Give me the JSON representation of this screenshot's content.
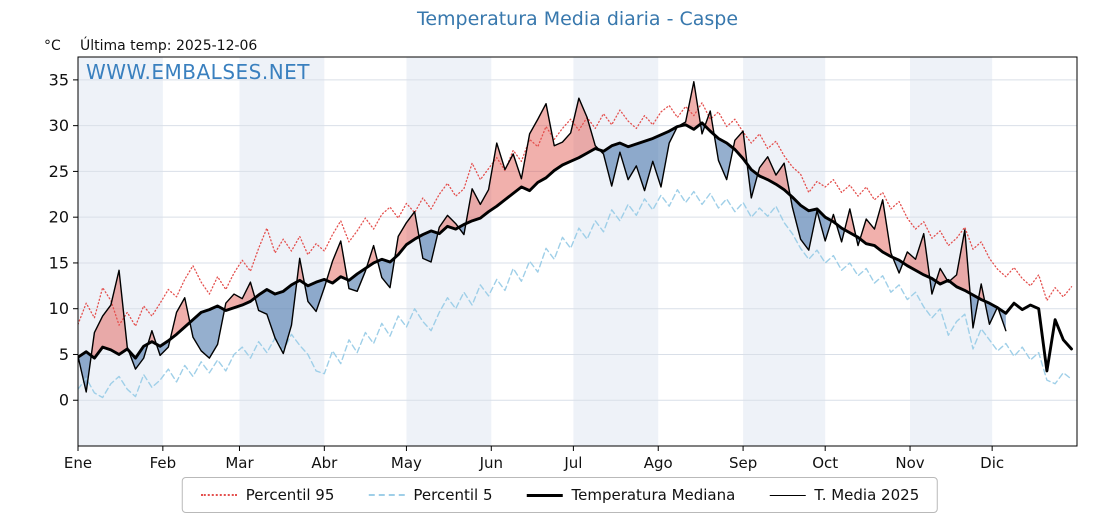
{
  "header": {
    "title": "Temperatura Media diaria - Caspe",
    "unit": "°C",
    "last_temp": "Última temp: 2025-12-06",
    "watermark": "WWW.EMBALSES.NET"
  },
  "colors": {
    "title_blue": "#3878ad",
    "watermark_blue": "#3a80bf",
    "p95_line": "#e4504e",
    "p5_line": "#9fcfe8",
    "median_line": "#000000",
    "t2025_line": "#000000",
    "fill_above": "rgba(225,80,72,0.45)",
    "fill_below": "rgba(62,110,165,0.55)",
    "month_band": "#eef2f8",
    "gridline": "#d9dfe8",
    "axis": "#000000"
  },
  "legend": [
    {
      "key": "p95",
      "label": "Percentil 95"
    },
    {
      "key": "p5",
      "label": "Percentil 5"
    },
    {
      "key": "median",
      "label": "Temperatura Mediana"
    },
    {
      "key": "t2025",
      "label": "T. Media 2025"
    }
  ],
  "chart_data": {
    "type": "line",
    "title": "Temperatura Media diaria - Caspe",
    "ylabel": "°C",
    "ylim": [
      -5,
      37.5
    ],
    "yticks": [
      0,
      5,
      10,
      15,
      20,
      25,
      30,
      35
    ],
    "grid": "horizontal",
    "legend_position": "bottom-center",
    "months": [
      "Ene",
      "Feb",
      "Mar",
      "Abr",
      "May",
      "Jun",
      "Jul",
      "Ago",
      "Sep",
      "Oct",
      "Nov",
      "Dic"
    ],
    "month_start_days": [
      0,
      31,
      59,
      90,
      120,
      151,
      181,
      212,
      243,
      273,
      304,
      334
    ],
    "days_total": 365,
    "banded_months": "odd (Ene, Mar, May, Jul, Sep, Nov shaded)",
    "x_step_days": 3,
    "last_data_day": 339,
    "series": [
      {
        "key": "p95",
        "name": "Percentil 95",
        "style": "dotted",
        "values": [
          8.3,
          10.6,
          9.0,
          12.3,
          10.9,
          8.2,
          9.6,
          8.1,
          10.3,
          9.2,
          10.6,
          12.1,
          11.3,
          13.2,
          14.7,
          12.9,
          11.6,
          13.5,
          12.1,
          13.9,
          15.3,
          14.1,
          16.6,
          18.8,
          16.1,
          17.6,
          16.3,
          17.9,
          15.9,
          17.1,
          16.3,
          18.1,
          19.6,
          17.3,
          18.5,
          19.9,
          18.7,
          20.3,
          21.1,
          19.9,
          21.5,
          20.5,
          22.1,
          20.9,
          22.5,
          23.7,
          22.3,
          23.1,
          25.9,
          24.1,
          25.3,
          26.5,
          25.1,
          27.3,
          26.1,
          28.5,
          27.7,
          29.9,
          28.5,
          29.7,
          30.7,
          29.5,
          30.9,
          29.7,
          31.3,
          30.1,
          31.7,
          30.5,
          29.7,
          31.1,
          30.1,
          31.5,
          32.2,
          30.9,
          32.1,
          31.1,
          32.5,
          30.7,
          31.5,
          29.9,
          30.7,
          29.3,
          28.1,
          29.1,
          27.5,
          28.3,
          26.7,
          25.5,
          24.7,
          22.7,
          23.9,
          23.3,
          24.1,
          22.7,
          23.5,
          22.3,
          23.3,
          21.9,
          22.7,
          20.9,
          21.7,
          19.9,
          18.7,
          19.5,
          17.7,
          18.5,
          16.9,
          17.7,
          18.9,
          16.5,
          17.3,
          15.5,
          14.3,
          13.5,
          14.5,
          13.3,
          12.5,
          13.7,
          10.9,
          12.3,
          11.3,
          12.4
        ]
      },
      {
        "key": "p5",
        "name": "Percentil 5",
        "style": "dashed",
        "values": [
          1.2,
          2.4,
          0.8,
          0.3,
          1.8,
          2.6,
          1.2,
          0.4,
          2.8,
          1.4,
          2.2,
          3.4,
          2.0,
          3.8,
          2.6,
          4.2,
          3.0,
          4.4,
          3.2,
          5.0,
          5.8,
          4.6,
          6.4,
          5.2,
          6.8,
          5.4,
          7.2,
          6.0,
          5.0,
          3.2,
          2.9,
          5.4,
          4.0,
          6.6,
          5.2,
          7.4,
          6.2,
          8.4,
          7.0,
          9.2,
          8.0,
          10.0,
          8.6,
          7.6,
          9.6,
          11.2,
          10.0,
          11.8,
          10.4,
          12.6,
          11.4,
          13.2,
          12.0,
          14.4,
          13.0,
          15.2,
          14.0,
          16.6,
          15.4,
          17.8,
          16.6,
          18.8,
          17.6,
          19.6,
          18.4,
          20.8,
          19.6,
          21.4,
          20.2,
          22.0,
          20.8,
          22.4,
          21.2,
          23.0,
          21.6,
          22.8,
          21.4,
          22.6,
          21.0,
          22.0,
          20.6,
          21.6,
          20.0,
          21.0,
          20.1,
          21.2,
          19.4,
          18.2,
          16.6,
          15.4,
          16.4,
          15.0,
          15.8,
          14.2,
          15.0,
          13.6,
          14.4,
          12.8,
          13.6,
          11.8,
          12.6,
          11.0,
          11.8,
          10.2,
          9.0,
          10.0,
          7.1,
          8.6,
          9.4,
          5.6,
          7.8,
          6.6,
          5.4,
          6.2,
          4.8,
          5.8,
          4.4,
          5.2,
          2.2,
          1.8,
          3.0,
          2.3
        ]
      },
      {
        "key": "median",
        "name": "Temperatura Mediana",
        "style": "solid-thick",
        "values": [
          4.7,
          5.3,
          4.6,
          5.8,
          5.5,
          5.0,
          5.6,
          4.6,
          5.9,
          6.4,
          5.9,
          6.5,
          7.2,
          8.0,
          8.8,
          9.6,
          9.9,
          10.3,
          9.8,
          10.1,
          10.4,
          10.8,
          11.5,
          12.1,
          11.6,
          11.9,
          12.6,
          13.1,
          12.5,
          12.9,
          13.2,
          12.8,
          13.5,
          13.1,
          13.8,
          14.4,
          15.0,
          15.4,
          15.1,
          15.9,
          17.0,
          17.6,
          18.1,
          18.5,
          18.2,
          19.0,
          18.7,
          19.2,
          19.6,
          19.9,
          20.6,
          21.2,
          21.9,
          22.6,
          23.3,
          22.9,
          23.8,
          24.3,
          25.1,
          25.7,
          26.1,
          26.5,
          27.0,
          27.5,
          27.2,
          27.8,
          28.1,
          27.7,
          28.0,
          28.3,
          28.6,
          29.0,
          29.4,
          29.9,
          30.1,
          29.6,
          30.3,
          29.4,
          28.6,
          28.1,
          27.4,
          26.4,
          25.2,
          24.5,
          24.1,
          23.6,
          23.0,
          22.2,
          21.3,
          20.7,
          20.9,
          20.0,
          19.5,
          18.8,
          18.3,
          17.8,
          17.1,
          16.9,
          16.2,
          15.7,
          15.3,
          14.7,
          14.2,
          13.7,
          13.3,
          12.7,
          13.1,
          12.4,
          12.0,
          11.5,
          11.0,
          10.6,
          10.1,
          9.5,
          10.6,
          9.9,
          10.4,
          10.0,
          3.2,
          8.8,
          6.6,
          5.6
        ]
      },
      {
        "key": "t2025",
        "name": "T. Media 2025",
        "style": "solid-thin",
        "values": [
          4.8,
          0.9,
          7.4,
          9.2,
          10.4,
          14.2,
          5.8,
          3.4,
          4.6,
          7.6,
          4.9,
          5.8,
          9.6,
          11.2,
          6.9,
          5.4,
          4.6,
          6.1,
          10.6,
          11.6,
          11.1,
          12.9,
          9.8,
          9.4,
          6.8,
          5.1,
          8.2,
          15.5,
          10.8,
          9.7,
          12.3,
          15.2,
          17.4,
          12.2,
          11.9,
          14.1,
          16.9,
          13.4,
          12.3,
          17.9,
          19.4,
          20.6,
          15.5,
          15.1,
          18.9,
          20.2,
          19.3,
          18.1,
          23.1,
          21.4,
          23.0,
          28.1,
          25.2,
          26.9,
          24.2,
          29.1,
          30.7,
          32.4,
          27.8,
          28.2,
          29.2,
          33.0,
          30.9,
          27.8,
          26.9,
          23.4,
          27.1,
          24.1,
          25.6,
          22.9,
          26.1,
          23.3,
          28.1,
          29.9,
          30.4,
          34.8,
          29.1,
          31.6,
          26.2,
          24.1,
          28.4,
          29.4,
          22.1,
          25.4,
          26.6,
          24.6,
          25.9,
          21.1,
          17.6,
          16.4,
          20.7,
          17.4,
          20.3,
          17.3,
          20.9,
          16.9,
          19.8,
          18.7,
          21.9,
          16.1,
          13.9,
          16.2,
          15.4,
          18.2,
          11.6,
          14.4,
          12.9,
          13.7,
          18.6,
          7.9,
          12.7,
          8.3,
          10.2,
          7.6
        ]
      }
    ],
    "fills": {
      "between": [
        "t2025",
        "median"
      ],
      "above_meaning": "2025 warmer than median (red)",
      "below_meaning": "2025 colder than median (blue)"
    }
  }
}
